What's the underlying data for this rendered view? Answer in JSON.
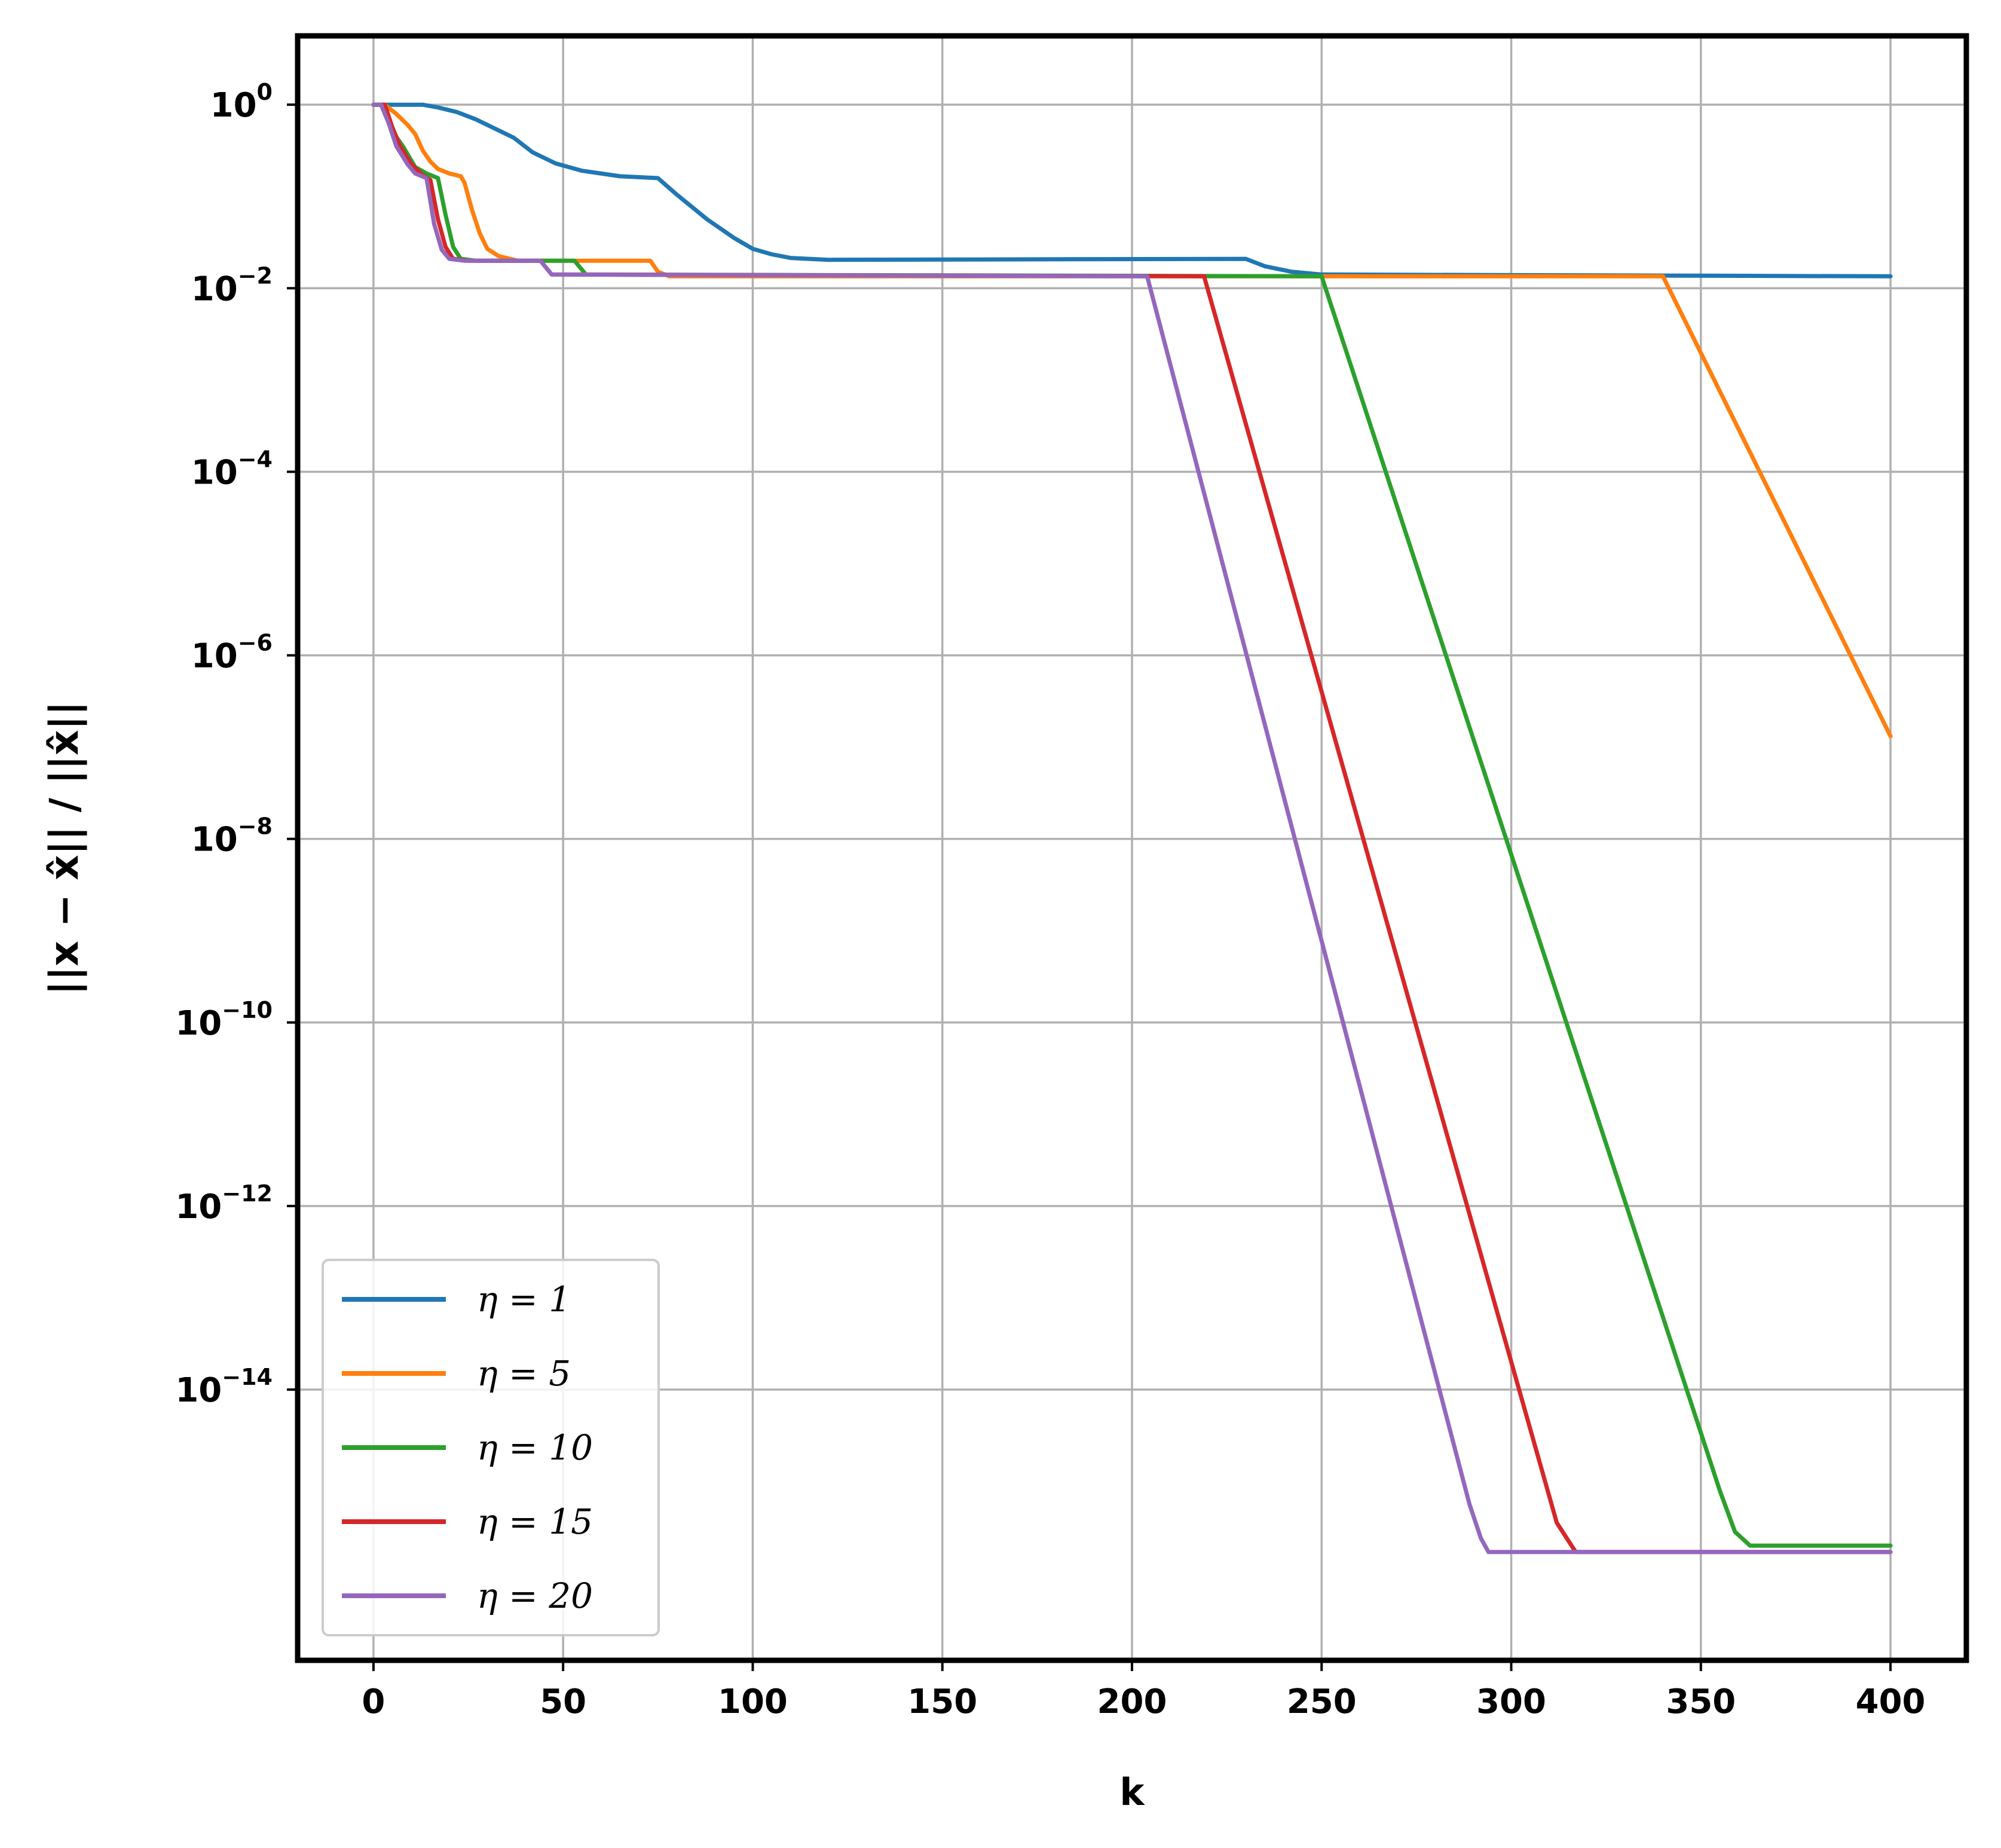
{
  "chart_data": {
    "type": "line",
    "title": "",
    "xlabel": "k",
    "ylabel": "||x − x̂|| / ||x̂||",
    "xlim": [
      -20,
      420
    ],
    "ylog": true,
    "ylim_exp": [
      -16.95,
      0.75
    ],
    "grid": true,
    "legend_position": "bottom-left",
    "x_ticks": [
      0,
      50,
      100,
      150,
      200,
      250,
      300,
      350,
      400
    ],
    "y_ticks": [
      {
        "exp": 0,
        "base": "10",
        "sup": "0"
      },
      {
        "exp": -2,
        "base": "10",
        "sup": "−2"
      },
      {
        "exp": -4,
        "base": "10",
        "sup": "−4"
      },
      {
        "exp": -6,
        "base": "10",
        "sup": "−6"
      },
      {
        "exp": -8,
        "base": "10",
        "sup": "−8"
      },
      {
        "exp": -10,
        "base": "10",
        "sup": "−10"
      },
      {
        "exp": -12,
        "base": "10",
        "sup": "−12"
      },
      {
        "exp": -14,
        "base": "10",
        "sup": "−14"
      }
    ],
    "series": [
      {
        "name": "η = 1",
        "color": "#1f77b4",
        "points": [
          [
            0,
            0
          ],
          [
            13,
            0
          ],
          [
            17,
            -0.03
          ],
          [
            22,
            -0.08
          ],
          [
            27,
            -0.16
          ],
          [
            32,
            -0.26
          ],
          [
            37,
            -0.36
          ],
          [
            42,
            -0.52
          ],
          [
            48,
            -0.64
          ],
          [
            55,
            -0.72
          ],
          [
            65,
            -0.78
          ],
          [
            75,
            -0.8
          ],
          [
            80,
            -0.98
          ],
          [
            88,
            -1.25
          ],
          [
            95,
            -1.45
          ],
          [
            100,
            -1.57
          ],
          [
            105,
            -1.63
          ],
          [
            110,
            -1.67
          ],
          [
            120,
            -1.69
          ],
          [
            230,
            -1.68
          ],
          [
            235,
            -1.76
          ],
          [
            242,
            -1.82
          ],
          [
            250,
            -1.85
          ],
          [
            400,
            -1.87
          ]
        ]
      },
      {
        "name": "η = 5",
        "color": "#ff7f0e",
        "points": [
          [
            0,
            0
          ],
          [
            3,
            0
          ],
          [
            6,
            -0.1
          ],
          [
            9,
            -0.22
          ],
          [
            11,
            -0.32
          ],
          [
            13,
            -0.5
          ],
          [
            15,
            -0.62
          ],
          [
            17,
            -0.7
          ],
          [
            20,
            -0.75
          ],
          [
            23,
            -0.78
          ],
          [
            24,
            -0.85
          ],
          [
            26,
            -1.15
          ],
          [
            28,
            -1.4
          ],
          [
            30,
            -1.57
          ],
          [
            33,
            -1.65
          ],
          [
            38,
            -1.7
          ],
          [
            73,
            -1.7
          ],
          [
            75,
            -1.82
          ],
          [
            78,
            -1.87
          ],
          [
            340,
            -1.87
          ],
          [
            400,
            -6.88
          ]
        ]
      },
      {
        "name": "η = 10",
        "color": "#2ca02c",
        "points": [
          [
            0,
            0
          ],
          [
            2,
            0
          ],
          [
            4,
            -0.15
          ],
          [
            6,
            -0.35
          ],
          [
            8,
            -0.47
          ],
          [
            11,
            -0.68
          ],
          [
            14,
            -0.75
          ],
          [
            17,
            -0.8
          ],
          [
            19,
            -1.2
          ],
          [
            21,
            -1.55
          ],
          [
            23,
            -1.68
          ],
          [
            27,
            -1.7
          ],
          [
            53,
            -1.7
          ],
          [
            56,
            -1.85
          ],
          [
            250,
            -1.87
          ],
          [
            355,
            -15.1
          ],
          [
            359,
            -15.55
          ],
          [
            363,
            -15.7
          ],
          [
            400,
            -15.7
          ]
        ]
      },
      {
        "name": "η = 15",
        "color": "#d62728",
        "points": [
          [
            0,
            0
          ],
          [
            3,
            0
          ],
          [
            5,
            -0.25
          ],
          [
            7,
            -0.45
          ],
          [
            10,
            -0.65
          ],
          [
            13,
            -0.77
          ],
          [
            15,
            -0.82
          ],
          [
            17,
            -1.25
          ],
          [
            19,
            -1.55
          ],
          [
            21,
            -1.68
          ],
          [
            25,
            -1.7
          ],
          [
            44,
            -1.7
          ],
          [
            47,
            -1.85
          ],
          [
            219,
            -1.87
          ],
          [
            312,
            -15.45
          ],
          [
            317,
            -15.77
          ],
          [
            400,
            -15.77
          ]
        ]
      },
      {
        "name": "η = 20",
        "color": "#9467bd",
        "points": [
          [
            0,
            0
          ],
          [
            2,
            0
          ],
          [
            4,
            -0.2
          ],
          [
            6,
            -0.45
          ],
          [
            9,
            -0.65
          ],
          [
            11,
            -0.75
          ],
          [
            14,
            -0.8
          ],
          [
            16,
            -1.3
          ],
          [
            18,
            -1.58
          ],
          [
            20,
            -1.68
          ],
          [
            24,
            -1.7
          ],
          [
            44,
            -1.7
          ],
          [
            47,
            -1.85
          ],
          [
            204,
            -1.87
          ],
          [
            289,
            -15.25
          ],
          [
            292,
            -15.62
          ],
          [
            294,
            -15.77
          ],
          [
            400,
            -15.77
          ]
        ]
      }
    ]
  }
}
